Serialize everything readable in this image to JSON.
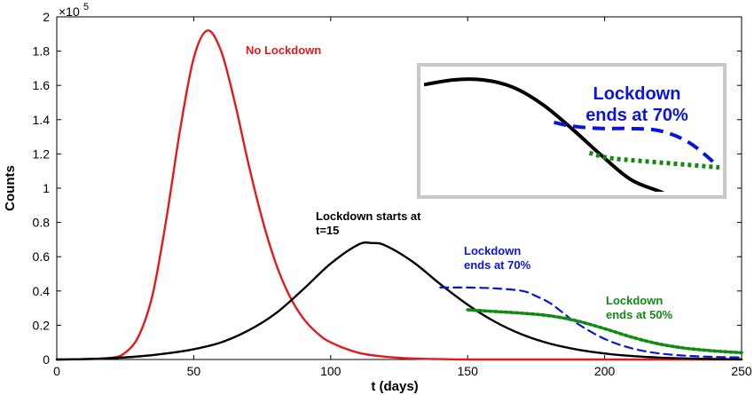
{
  "chart_data": {
    "type": "line",
    "xlabel": "t (days)",
    "ylabel": "Counts",
    "xlim": [
      0,
      250
    ],
    "ylim": [
      0,
      2
    ],
    "y_multiplier": "×10",
    "y_multiplier_exponent": "5",
    "x_ticks": [
      "0",
      "50",
      "100",
      "150",
      "200",
      "250"
    ],
    "y_ticks": [
      "0",
      "0.2",
      "0.4",
      "0.6",
      "0.8",
      "1",
      "1.2",
      "1.4",
      "1.6",
      "1.8",
      "2"
    ],
    "grid": false,
    "series": [
      {
        "key": "no_lockdown",
        "color": "#e31a1c",
        "style": "solid",
        "x": [
          0,
          10,
          20,
          25,
          30,
          35,
          40,
          45,
          50,
          55,
          60,
          65,
          70,
          75,
          80,
          85,
          90,
          95,
          100,
          110,
          120,
          130,
          140,
          150,
          170,
          200,
          250
        ],
        "y": [
          0,
          0.002,
          0.01,
          0.04,
          0.14,
          0.38,
          0.82,
          1.34,
          1.76,
          1.92,
          1.8,
          1.5,
          1.14,
          0.82,
          0.56,
          0.37,
          0.24,
          0.155,
          0.1,
          0.04,
          0.016,
          0.006,
          0.002,
          0,
          0,
          0,
          0
        ]
      },
      {
        "key": "lockdown_starts_at_15",
        "color": "#000000",
        "style": "solid",
        "x": [
          0,
          10,
          20,
          30,
          40,
          50,
          60,
          70,
          80,
          90,
          100,
          110,
          115,
          120,
          130,
          140,
          150,
          160,
          170,
          180,
          190,
          200,
          210,
          220,
          230,
          240,
          250
        ],
        "y": [
          0,
          0.002,
          0.008,
          0.018,
          0.035,
          0.06,
          0.1,
          0.17,
          0.27,
          0.41,
          0.56,
          0.67,
          0.68,
          0.665,
          0.57,
          0.44,
          0.32,
          0.22,
          0.145,
          0.093,
          0.058,
          0.035,
          0.02,
          0.011,
          0.006,
          0.003,
          0.001
        ]
      },
      {
        "key": "lockdown_ends_at_70",
        "color": "#0a14e0",
        "style": "dashed",
        "x": [
          140,
          145,
          150,
          160,
          170,
          175,
          180,
          185,
          190,
          200,
          210,
          220,
          230,
          240,
          250
        ],
        "y": [
          0.42,
          0.42,
          0.42,
          0.415,
          0.4,
          0.37,
          0.33,
          0.27,
          0.21,
          0.12,
          0.065,
          0.035,
          0.022,
          0.015,
          0.012
        ]
      },
      {
        "key": "lockdown_ends_at_50",
        "color": "#118a11",
        "style": "dotted",
        "x": [
          150,
          155,
          160,
          170,
          180,
          190,
          200,
          210,
          220,
          230,
          240,
          250
        ],
        "y": [
          0.29,
          0.285,
          0.28,
          0.27,
          0.255,
          0.225,
          0.18,
          0.13,
          0.09,
          0.065,
          0.05,
          0.04
        ]
      }
    ],
    "annotations": [
      {
        "key": "red",
        "lines": [
          "No Lockdown"
        ],
        "color": "#e31a1c"
      },
      {
        "key": "black",
        "lines": [
          "Lockdown starts at",
          "t=15"
        ],
        "color": "#000000"
      },
      {
        "key": "blue",
        "lines": [
          "Lockdown",
          "ends at 70%"
        ],
        "color": "#0a14e0"
      },
      {
        "key": "green",
        "lines": [
          "Lockdown",
          "ends at 50%"
        ],
        "color": "#118a11"
      }
    ],
    "inset": {
      "lines": [
        "Lockdown",
        "ends at 70%"
      ],
      "color": "#0a14e0",
      "x": [
        0,
        10,
        20,
        30,
        40,
        50,
        60,
        70,
        80,
        90,
        100
      ],
      "black": [
        0.88,
        0.92,
        0.92,
        0.86,
        0.72,
        0.52,
        0.3,
        0.1,
        0,
        -0.1,
        -0.1
      ],
      "blue_x": [
        44,
        50,
        60,
        70,
        80,
        90,
        100
      ],
      "blue": [
        0.57,
        0.54,
        0.52,
        0.52,
        0.5,
        0.4,
        0.2
      ],
      "green_x": [
        56,
        62,
        70,
        80,
        90,
        100
      ],
      "green": [
        0.32,
        0.28,
        0.26,
        0.24,
        0.22,
        0.2
      ]
    }
  }
}
